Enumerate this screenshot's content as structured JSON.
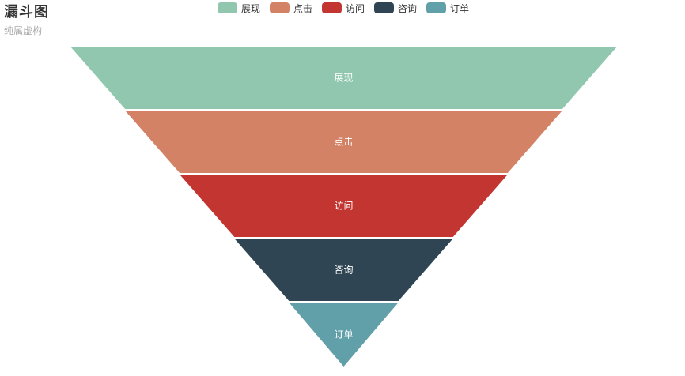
{
  "chart_data": {
    "type": "funnel",
    "title": "漏斗图",
    "subtitle": "纯属虚构",
    "categories": [
      "展现",
      "点击",
      "访问",
      "咨询",
      "订单"
    ],
    "values": [
      100,
      80,
      60,
      40,
      20
    ],
    "colors": [
      "#91c7ae",
      "#d48265",
      "#c23531",
      "#2f4554",
      "#61a0a8"
    ],
    "legend_position": "top-center",
    "sort": "descending"
  }
}
